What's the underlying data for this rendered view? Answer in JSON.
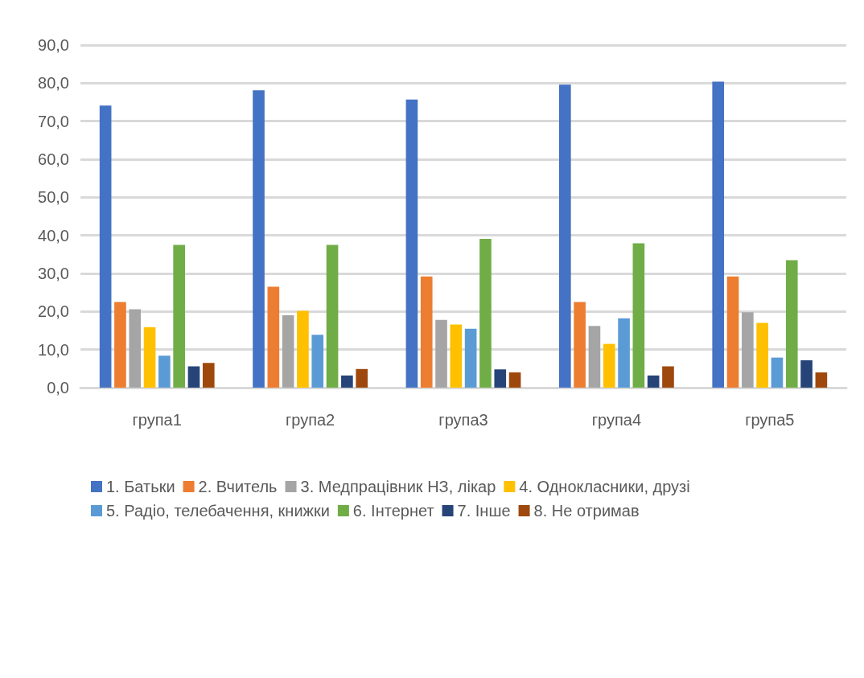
{
  "chart_data": {
    "type": "bar",
    "categories": [
      "група1",
      "група2",
      "група3",
      "група4",
      "група5"
    ],
    "series": [
      {
        "name": "1. Батьки",
        "color": "#4472c4",
        "values": [
          74.1,
          78.1,
          75.7,
          79.6,
          80.4
        ]
      },
      {
        "name": "2. Вчитель",
        "color": "#ed7d31",
        "values": [
          22.5,
          26.5,
          29.2,
          22.5,
          29.2
        ]
      },
      {
        "name": "3. Медпрацівник НЗ, лікар",
        "color": "#a5a5a5",
        "values": [
          20.6,
          19.0,
          17.8,
          16.2,
          19.8
        ]
      },
      {
        "name": "4. Однокласники, друзі",
        "color": "#ffc000",
        "values": [
          15.9,
          20.2,
          16.6,
          11.5,
          17.0
        ]
      },
      {
        "name": "5. Радіо, телебачення, книжки",
        "color": "#5b9bd5",
        "values": [
          8.4,
          13.9,
          15.5,
          18.2,
          7.9
        ]
      },
      {
        "name": "6. Інтернет",
        "color": "#70ad47",
        "values": [
          37.5,
          37.5,
          39.1,
          37.9,
          33.5
        ]
      },
      {
        "name": "7. Інше",
        "color": "#264478",
        "values": [
          5.6,
          3.2,
          4.8,
          3.2,
          7.2
        ]
      },
      {
        "name": "8. Не отримав",
        "color": "#9e480e",
        "values": [
          6.5,
          4.9,
          4.0,
          5.6,
          4.0
        ]
      }
    ],
    "ylim": [
      0,
      90
    ],
    "yticks": [
      {
        "value": 0,
        "label": "0,0"
      },
      {
        "value": 10,
        "label": "10,0"
      },
      {
        "value": 20,
        "label": "20,0"
      },
      {
        "value": 30,
        "label": "30,0"
      },
      {
        "value": 40,
        "label": "40,0"
      },
      {
        "value": 50,
        "label": "50,0"
      },
      {
        "value": 60,
        "label": "60,0"
      },
      {
        "value": 70,
        "label": "70,0"
      },
      {
        "value": 80,
        "label": "80,0"
      },
      {
        "value": 90,
        "label": "90,0"
      }
    ],
    "grid": "y",
    "legend": "bottom"
  }
}
